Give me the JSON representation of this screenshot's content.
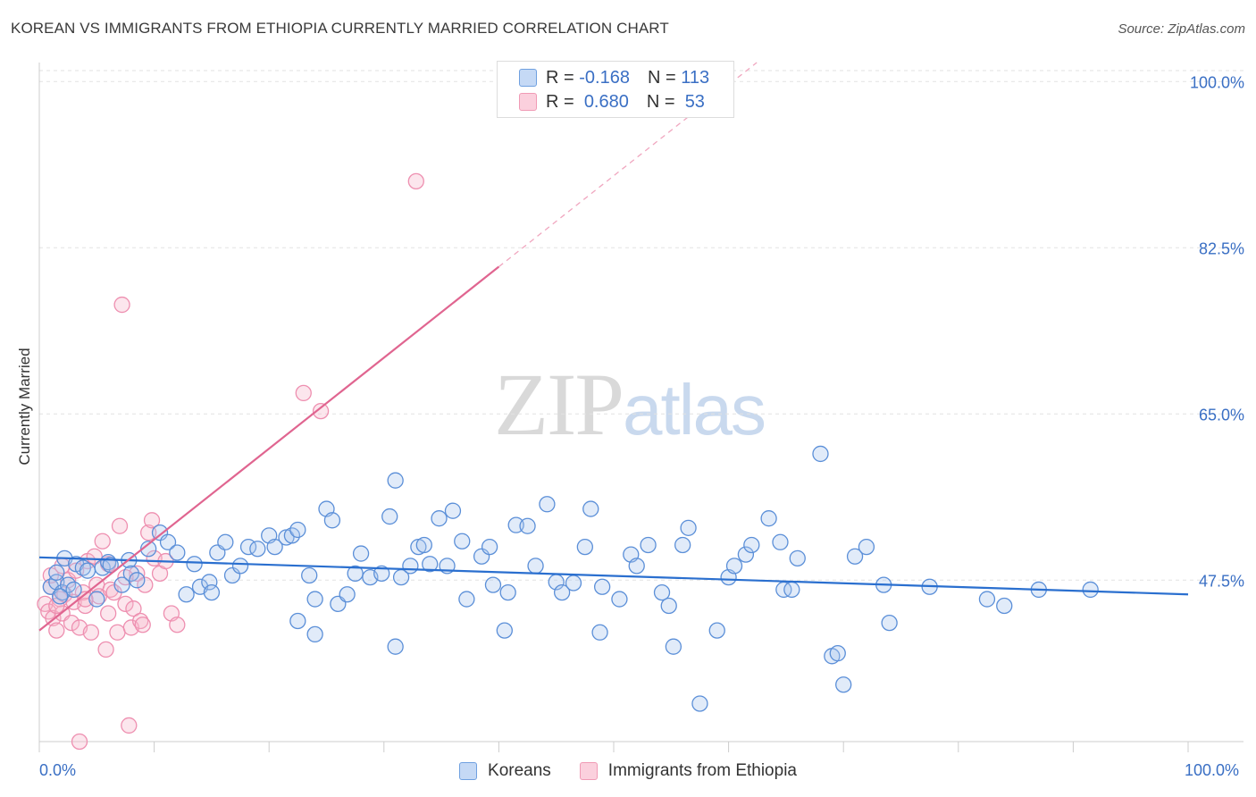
{
  "title": "KOREAN VS IMMIGRANTS FROM ETHIOPIA CURRENTLY MARRIED CORRELATION CHART",
  "source": "Source: ZipAtlas.com",
  "watermark": {
    "part1": "ZIP",
    "part2": "atlas"
  },
  "legend": {
    "r_label": "R =",
    "n_label": "N =",
    "rows": [
      {
        "r": "-0.168",
        "n": "113",
        "color": "#6fa0e0"
      },
      {
        "r": "0.680",
        "n": "53",
        "color": "#f09ab5"
      }
    ]
  },
  "bottom_legend": [
    "Koreans",
    "Immigrants from Ethiopia"
  ],
  "chart_data": {
    "type": "scatter",
    "xlabel": "",
    "ylabel": "Currently Married",
    "xlim": [
      0,
      100
    ],
    "ylim": [
      30.5,
      102
    ],
    "x_tick_labels": [
      "0.0%",
      "100.0%"
    ],
    "y_ticks": [
      {
        "value": 100,
        "label": "100.0%"
      },
      {
        "value": 82.5,
        "label": "82.5%"
      },
      {
        "value": 65,
        "label": "65.0%"
      },
      {
        "value": 47.5,
        "label": "47.5%"
      }
    ],
    "grid": true,
    "colors": {
      "koreans": "#5b8fd8",
      "ethiopia": "#ee8fb0",
      "korean_line": "#2a6fcf",
      "ethiopia_line": "#e06590"
    },
    "series": [
      {
        "name": "Koreans",
        "points": [
          [
            1.0,
            46.8
          ],
          [
            1.5,
            47.3
          ],
          [
            2.0,
            46.2
          ],
          [
            2.5,
            47.0
          ],
          [
            1.8,
            45.8
          ],
          [
            2.2,
            49.8
          ],
          [
            3.2,
            49.2
          ],
          [
            3.8,
            48.8
          ],
          [
            4.2,
            48.5
          ],
          [
            5.0,
            45.5
          ],
          [
            5.5,
            48.8
          ],
          [
            6.0,
            49.4
          ],
          [
            6.2,
            49.1
          ],
          [
            7.2,
            47.0
          ],
          [
            7.8,
            49.6
          ],
          [
            8.0,
            48.2
          ],
          [
            9.5,
            50.8
          ],
          [
            10.5,
            52.5
          ],
          [
            11.2,
            51.5
          ],
          [
            12.0,
            50.4
          ],
          [
            12.8,
            46.0
          ],
          [
            13.5,
            49.2
          ],
          [
            14.0,
            46.8
          ],
          [
            14.8,
            47.3
          ],
          [
            15.5,
            50.4
          ],
          [
            16.2,
            51.5
          ],
          [
            16.8,
            48.0
          ],
          [
            17.5,
            49.0
          ],
          [
            18.2,
            51.0
          ],
          [
            19.0,
            50.8
          ],
          [
            20.0,
            52.2
          ],
          [
            20.5,
            51.0
          ],
          [
            21.5,
            52.0
          ],
          [
            22.0,
            52.2
          ],
          [
            22.5,
            52.8
          ],
          [
            23.5,
            48.0
          ],
          [
            24.0,
            45.5
          ],
          [
            25.0,
            55.0
          ],
          [
            25.5,
            53.8
          ],
          [
            26.0,
            45.0
          ],
          [
            26.8,
            46.0
          ],
          [
            27.5,
            48.2
          ],
          [
            28.0,
            50.3
          ],
          [
            28.8,
            47.8
          ],
          [
            29.8,
            48.2
          ],
          [
            30.5,
            54.2
          ],
          [
            31.0,
            58.0
          ],
          [
            31.5,
            47.8
          ],
          [
            32.3,
            49.0
          ],
          [
            33.0,
            51.0
          ],
          [
            33.5,
            51.2
          ],
          [
            34.0,
            49.2
          ],
          [
            34.8,
            54.0
          ],
          [
            35.5,
            49.0
          ],
          [
            36.0,
            54.8
          ],
          [
            36.8,
            51.6
          ],
          [
            37.2,
            45.5
          ],
          [
            38.5,
            50.0
          ],
          [
            39.2,
            51.0
          ],
          [
            39.5,
            47.0
          ],
          [
            40.5,
            42.2
          ],
          [
            40.8,
            46.2
          ],
          [
            41.5,
            53.3
          ],
          [
            42.5,
            53.2
          ],
          [
            43.2,
            49.0
          ],
          [
            44.2,
            55.5
          ],
          [
            45.0,
            47.3
          ],
          [
            45.5,
            46.2
          ],
          [
            46.5,
            47.2
          ],
          [
            47.5,
            51.0
          ],
          [
            48.0,
            55.0
          ],
          [
            48.8,
            42.0
          ],
          [
            49.0,
            46.8
          ],
          [
            50.5,
            45.5
          ],
          [
            51.5,
            50.2
          ],
          [
            52.0,
            49.0
          ],
          [
            53.0,
            51.2
          ],
          [
            54.2,
            46.2
          ],
          [
            54.8,
            44.8
          ],
          [
            55.2,
            40.5
          ],
          [
            56.0,
            51.2
          ],
          [
            56.5,
            53.0
          ],
          [
            57.5,
            34.5
          ],
          [
            59.0,
            42.2
          ],
          [
            60.0,
            47.8
          ],
          [
            60.5,
            49.0
          ],
          [
            61.5,
            50.2
          ],
          [
            62.0,
            51.2
          ],
          [
            63.5,
            54.0
          ],
          [
            64.5,
            51.5
          ],
          [
            64.8,
            46.5
          ],
          [
            65.5,
            46.5
          ],
          [
            66.0,
            49.8
          ],
          [
            68.0,
            60.8
          ],
          [
            69.0,
            39.5
          ],
          [
            69.5,
            39.8
          ],
          [
            70.0,
            36.5
          ],
          [
            71.0,
            50.0
          ],
          [
            72.0,
            51.0
          ],
          [
            73.5,
            47.0
          ],
          [
            74.0,
            43.0
          ],
          [
            77.5,
            46.8
          ],
          [
            82.5,
            45.5
          ],
          [
            84.0,
            44.8
          ],
          [
            87.0,
            46.5
          ],
          [
            91.5,
            46.5
          ],
          [
            1.5,
            48.3
          ],
          [
            3.0,
            46.5
          ],
          [
            8.5,
            47.5
          ],
          [
            15.0,
            46.2
          ],
          [
            22.5,
            43.2
          ],
          [
            24.0,
            41.8
          ],
          [
            31.0,
            40.5
          ]
        ]
      },
      {
        "name": "Immigrants from Ethiopia",
        "points": [
          [
            0.5,
            45.0
          ],
          [
            0.8,
            44.2
          ],
          [
            1.0,
            46.8
          ],
          [
            1.2,
            43.5
          ],
          [
            1.5,
            42.2
          ],
          [
            1.8,
            45.5
          ],
          [
            2.0,
            44.0
          ],
          [
            2.2,
            46.0
          ],
          [
            2.5,
            47.5
          ],
          [
            2.8,
            43.0
          ],
          [
            3.0,
            45.2
          ],
          [
            3.2,
            48.5
          ],
          [
            3.5,
            42.5
          ],
          [
            3.8,
            46.2
          ],
          [
            4.0,
            44.8
          ],
          [
            4.2,
            49.5
          ],
          [
            4.5,
            42.0
          ],
          [
            4.8,
            50.0
          ],
          [
            5.0,
            47.0
          ],
          [
            5.2,
            45.8
          ],
          [
            5.5,
            51.6
          ],
          [
            5.8,
            40.2
          ],
          [
            6.0,
            44.0
          ],
          [
            6.2,
            46.5
          ],
          [
            6.5,
            46.2
          ],
          [
            6.8,
            42.0
          ],
          [
            7.0,
            53.2
          ],
          [
            7.2,
            76.5
          ],
          [
            7.5,
            45.0
          ],
          [
            7.8,
            32.2
          ],
          [
            8.0,
            42.5
          ],
          [
            8.2,
            44.5
          ],
          [
            8.5,
            48.2
          ],
          [
            8.8,
            43.2
          ],
          [
            9.0,
            42.8
          ],
          [
            9.2,
            47.0
          ],
          [
            9.5,
            52.5
          ],
          [
            9.8,
            53.8
          ],
          [
            10.0,
            49.8
          ],
          [
            10.5,
            48.2
          ],
          [
            11.0,
            49.5
          ],
          [
            11.5,
            44.0
          ],
          [
            12.0,
            42.8
          ],
          [
            23.0,
            67.2
          ],
          [
            32.8,
            89.5
          ],
          [
            3.5,
            30.5
          ],
          [
            1.0,
            48.0
          ],
          [
            2.0,
            49.0
          ],
          [
            4.0,
            45.5
          ],
          [
            6.0,
            49.2
          ],
          [
            7.5,
            47.8
          ],
          [
            24.5,
            65.3
          ],
          [
            1.5,
            44.8
          ]
        ]
      }
    ],
    "trend_lines": [
      {
        "name": "Koreans",
        "x": [
          0,
          100
        ],
        "y": [
          49.9,
          46.0
        ]
      },
      {
        "name": "Immigrants from Ethiopia",
        "x": [
          0,
          40
        ],
        "y": [
          42.2,
          80.5
        ],
        "dashed_extension_x": [
          40,
          100
        ]
      }
    ]
  }
}
